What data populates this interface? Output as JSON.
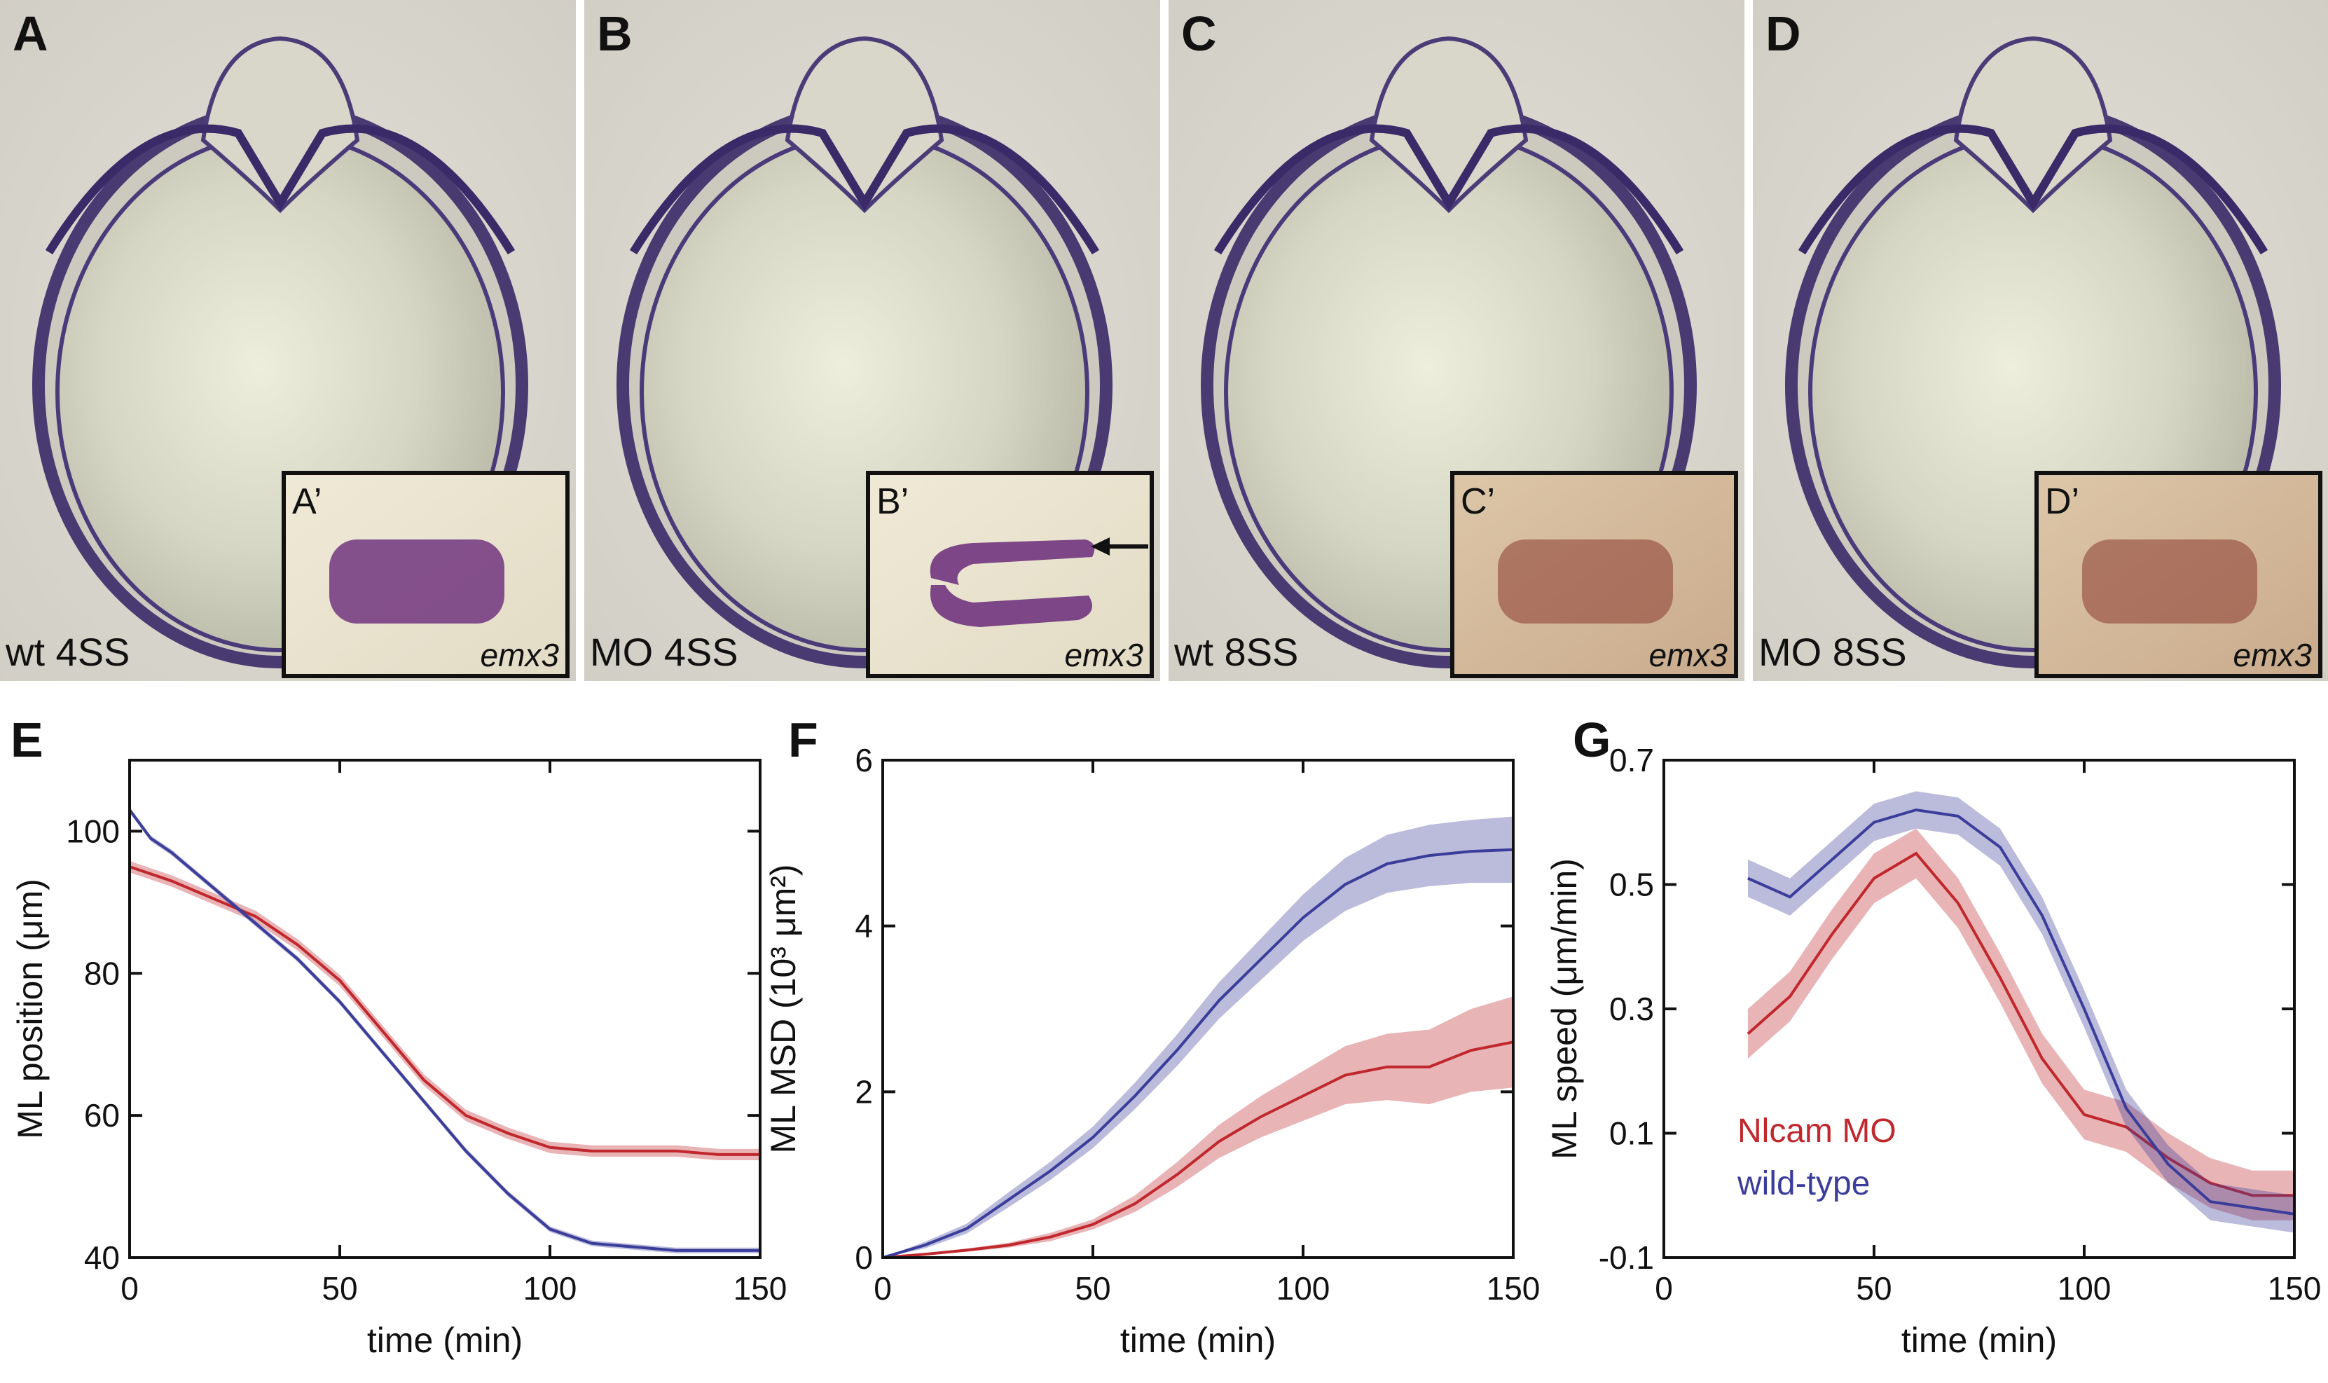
{
  "figure": {
    "image_panels": [
      {
        "letter": "A",
        "condition": "wt 4SS",
        "inset": "A’",
        "gene": "emx3",
        "stain": "purple",
        "arrow": false
      },
      {
        "letter": "B",
        "condition": "MO 4SS",
        "inset": "B’",
        "gene": "emx3",
        "stain": "purple",
        "arrow": true
      },
      {
        "letter": "C",
        "condition": "wt 8SS",
        "inset": "C’",
        "gene": "emx3",
        "stain": "brown",
        "arrow": false
      },
      {
        "letter": "D",
        "condition": "MO 8SS",
        "inset": "D’",
        "gene": "emx3",
        "stain": "brown",
        "arrow": false
      }
    ],
    "colors": {
      "nlcam": "#c0282d",
      "wildtype": "#3b3d9a",
      "purple_stain": "#6a2a7a",
      "brown_stain": "#8a3a30"
    }
  },
  "chart_data": [
    {
      "panel": "E",
      "type": "line",
      "xlabel": "time (min)",
      "ylabel": "ML position (μm)",
      "xlim": [
        0,
        150
      ],
      "ylim": [
        40,
        110
      ],
      "xticks": [
        "0",
        "50",
        "100",
        "150"
      ],
      "yticks": [
        "40",
        "60",
        "80",
        "100"
      ],
      "series": [
        {
          "key": "nlcam",
          "x": [
            0,
            10,
            20,
            30,
            40,
            50,
            60,
            70,
            80,
            90,
            100,
            110,
            120,
            130,
            140,
            150
          ],
          "values": [
            95,
            93,
            90.5,
            88,
            84,
            79,
            72,
            65,
            60,
            57.5,
            55.5,
            55,
            55,
            55,
            54.5,
            54.5
          ],
          "band": 0.8
        },
        {
          "key": "wildtype",
          "x": [
            0,
            5,
            10,
            20,
            30,
            40,
            50,
            60,
            70,
            80,
            90,
            100,
            110,
            120,
            130,
            140,
            150
          ],
          "values": [
            103,
            99,
            97,
            92,
            87,
            82,
            76,
            69,
            62,
            55,
            49,
            44,
            42,
            41.5,
            41,
            41,
            41
          ],
          "band": 0.4
        }
      ]
    },
    {
      "panel": "F",
      "type": "line",
      "xlabel": "time (min)",
      "ylabel": "ML MSD (10³ μm²)",
      "xlim": [
        0,
        150
      ],
      "ylim": [
        0,
        6
      ],
      "xticks": [
        "0",
        "50",
        "100",
        "150"
      ],
      "yticks": [
        "0",
        "2",
        "4",
        "6"
      ],
      "series": [
        {
          "key": "nlcam",
          "x": [
            0,
            10,
            20,
            30,
            40,
            50,
            60,
            70,
            80,
            90,
            100,
            110,
            120,
            130,
            140,
            150
          ],
          "values": [
            0,
            0.04,
            0.09,
            0.15,
            0.25,
            0.4,
            0.65,
            1.0,
            1.4,
            1.7,
            1.95,
            2.2,
            2.3,
            2.3,
            2.5,
            2.6
          ],
          "band": [
            0,
            0.01,
            0.02,
            0.03,
            0.05,
            0.06,
            0.1,
            0.15,
            0.2,
            0.25,
            0.3,
            0.35,
            0.4,
            0.45,
            0.5,
            0.55
          ]
        },
        {
          "key": "wildtype",
          "x": [
            0,
            10,
            20,
            30,
            40,
            50,
            60,
            70,
            80,
            90,
            100,
            110,
            120,
            130,
            140,
            150
          ],
          "values": [
            0,
            0.15,
            0.35,
            0.7,
            1.05,
            1.45,
            1.95,
            2.5,
            3.1,
            3.6,
            4.1,
            4.5,
            4.75,
            4.85,
            4.9,
            4.92
          ],
          "band": [
            0,
            0.04,
            0.06,
            0.09,
            0.11,
            0.13,
            0.16,
            0.19,
            0.22,
            0.25,
            0.28,
            0.32,
            0.35,
            0.37,
            0.38,
            0.4
          ]
        }
      ]
    },
    {
      "panel": "G",
      "type": "line",
      "xlabel": "time (min)",
      "ylabel": "ML speed (μm/min)",
      "xlim": [
        0,
        150
      ],
      "ylim": [
        -0.1,
        0.7
      ],
      "xticks": [
        "0",
        "50",
        "100",
        "150"
      ],
      "yticks": [
        "-0.1",
        "0.1",
        "0.3",
        "0.5",
        "0.7"
      ],
      "series": [
        {
          "key": "nlcam",
          "name": "Nlcam MO",
          "x": [
            20,
            30,
            40,
            50,
            60,
            70,
            80,
            90,
            100,
            110,
            120,
            130,
            140,
            150
          ],
          "values": [
            0.26,
            0.32,
            0.42,
            0.51,
            0.55,
            0.47,
            0.35,
            0.22,
            0.13,
            0.11,
            0.06,
            0.02,
            0.0,
            0.0
          ],
          "band": 0.04
        },
        {
          "key": "wildtype",
          "name": "wild-type",
          "x": [
            20,
            30,
            40,
            50,
            60,
            70,
            80,
            90,
            100,
            110,
            120,
            130,
            140,
            150
          ],
          "values": [
            0.51,
            0.48,
            0.54,
            0.6,
            0.62,
            0.61,
            0.56,
            0.45,
            0.3,
            0.14,
            0.05,
            -0.01,
            -0.02,
            -0.03
          ],
          "band": 0.03
        }
      ]
    }
  ]
}
